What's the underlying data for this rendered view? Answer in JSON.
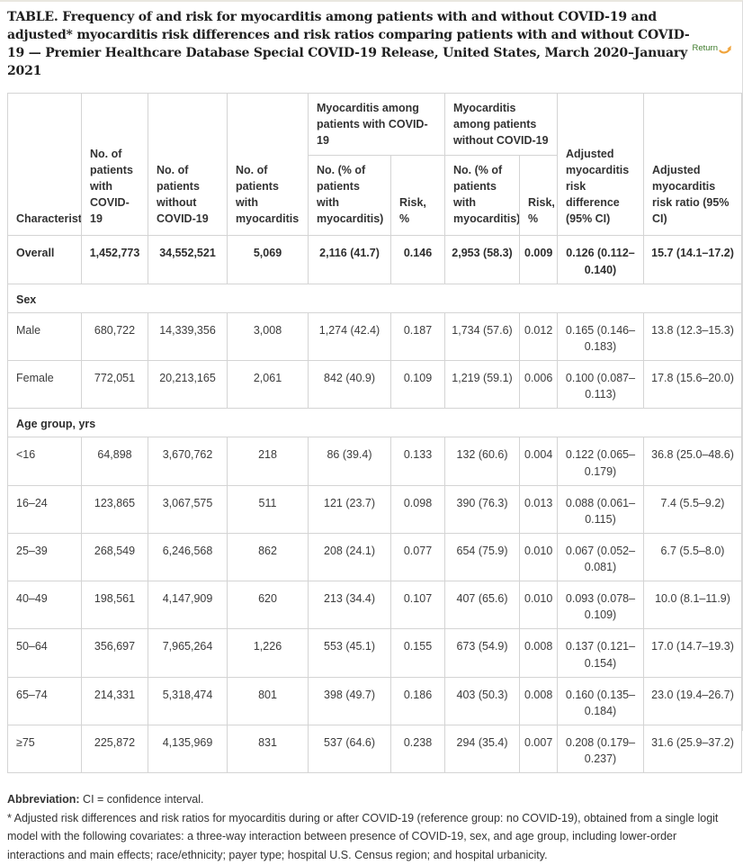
{
  "page": {
    "title": "TABLE. Frequency of and risk for myocarditis among patients with and without COVID-19 and adjusted* myocarditis risk differences and risk ratios comparing patients with and without COVID-19 — Premier Healthcare Database Special COVID-19 Release, United States, March 2020–January 2021",
    "return_label": "Return",
    "accent_green": "#3d7a2a",
    "accent_orange": "#f0a43c",
    "border_gray": "#d4d4d4"
  },
  "table": {
    "headers": {
      "characteristic": "Characteristic",
      "col_with_covid": "No. of patients with COVID-19",
      "col_without_covid": "No. of patients without COVID-19",
      "col_myocarditis": "No. of patients with myocarditis",
      "group_with": "Myocarditis among patients with COVID-19",
      "group_without": "Myocarditis among patients without COVID-19",
      "sub_no_pct": "No. (% of patients with myocarditis)",
      "sub_risk": "Risk, %",
      "col_risk_diff": "Adjusted myocarditis risk difference (95% CI)",
      "col_risk_ratio": "Adjusted myocarditis risk ratio (95% CI)"
    },
    "rows": [
      {
        "type": "data",
        "bold": true,
        "cells": [
          "Overall",
          "1,452,773",
          "34,552,521",
          "5,069",
          "2,116 (41.7)",
          "0.146",
          "2,953 (58.3)",
          "0.009",
          "0.126 (0.112–0.140)",
          "15.7 (14.1–17.2)"
        ]
      },
      {
        "type": "section",
        "label": "Sex"
      },
      {
        "type": "data",
        "cells": [
          "Male",
          "680,722",
          "14,339,356",
          "3,008",
          "1,274 (42.4)",
          "0.187",
          "1,734 (57.6)",
          "0.012",
          "0.165 (0.146–0.183)",
          "13.8 (12.3–15.3)"
        ]
      },
      {
        "type": "data",
        "cells": [
          "Female",
          "772,051",
          "20,213,165",
          "2,061",
          "842 (40.9)",
          "0.109",
          "1,219 (59.1)",
          "0.006",
          "0.100 (0.087–0.113)",
          "17.8 (15.6–20.0)"
        ]
      },
      {
        "type": "section",
        "label": "Age group, yrs"
      },
      {
        "type": "data",
        "cells": [
          "<16",
          "64,898",
          "3,670,762",
          "218",
          "86 (39.4)",
          "0.133",
          "132 (60.6)",
          "0.004",
          "0.122 (0.065–0.179)",
          "36.8 (25.0–48.6)"
        ]
      },
      {
        "type": "data",
        "cells": [
          "16–24",
          "123,865",
          "3,067,575",
          "511",
          "121 (23.7)",
          "0.098",
          "390 (76.3)",
          "0.013",
          "0.088 (0.061–0.115)",
          "7.4 (5.5–9.2)"
        ]
      },
      {
        "type": "data",
        "cells": [
          "25–39",
          "268,549",
          "6,246,568",
          "862",
          "208 (24.1)",
          "0.077",
          "654 (75.9)",
          "0.010",
          "0.067 (0.052–0.081)",
          "6.7 (5.5–8.0)"
        ]
      },
      {
        "type": "data",
        "cells": [
          "40–49",
          "198,561",
          "4,147,909",
          "620",
          "213 (34.4)",
          "0.107",
          "407 (65.6)",
          "0.010",
          "0.093 (0.078–0.109)",
          "10.0 (8.1–11.9)"
        ]
      },
      {
        "type": "data",
        "cells": [
          "50–64",
          "356,697",
          "7,965,264",
          "1,226",
          "553 (45.1)",
          "0.155",
          "673 (54.9)",
          "0.008",
          "0.137 (0.121–0.154)",
          "17.0 (14.7–19.3)"
        ]
      },
      {
        "type": "data",
        "cells": [
          "65–74",
          "214,331",
          "5,318,474",
          "801",
          "398 (49.7)",
          "0.186",
          "403 (50.3)",
          "0.008",
          "0.160 (0.135–0.184)",
          "23.0 (19.4–26.7)"
        ]
      },
      {
        "type": "data",
        "cells": [
          "≥75",
          "225,872",
          "4,135,969",
          "831",
          "537 (64.6)",
          "0.238",
          "294 (35.4)",
          "0.007",
          "0.208 (0.179–0.237)",
          "31.6 (25.9–37.2)"
        ]
      }
    ]
  },
  "footnotes": {
    "abbreviation_label": "Abbreviation:",
    "abbreviation_text": " CI = confidence interval.",
    "asterisk_note": "* Adjusted risk differences and risk ratios for myocarditis during or after COVID-19 (reference group: no COVID-19), obtained from a single logit model with the following covariates: a three-way interaction between presence of COVID-19, sex, and age group, including lower-order interactions and main effects; race/ethnicity; payer type; hospital U.S. Census region; and hospital urbanicity."
  }
}
